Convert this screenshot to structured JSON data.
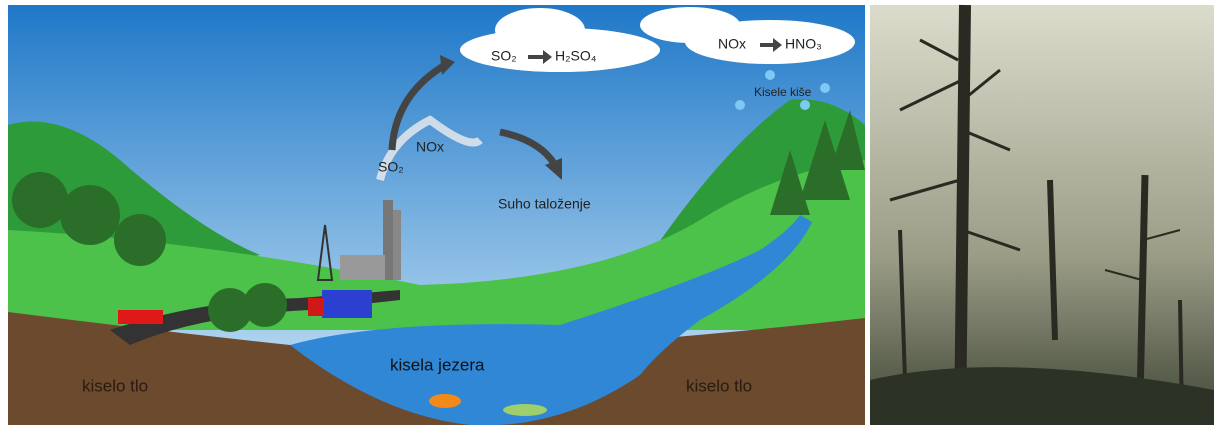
{
  "reactions": [
    {
      "from": "SO₂",
      "to": "H₂SO₄"
    },
    {
      "from": "NOx",
      "to": "HNO₃"
    }
  ],
  "labels": {
    "acid_rain": "Kisele kiše",
    "emission_so2": "SO₂",
    "emission_nox": "NOx",
    "dry_deposition": "Suho taloženje",
    "lakes": "kisela jezera",
    "soil_left": "kiselo tlo",
    "soil_right": "kiselo tlo"
  }
}
